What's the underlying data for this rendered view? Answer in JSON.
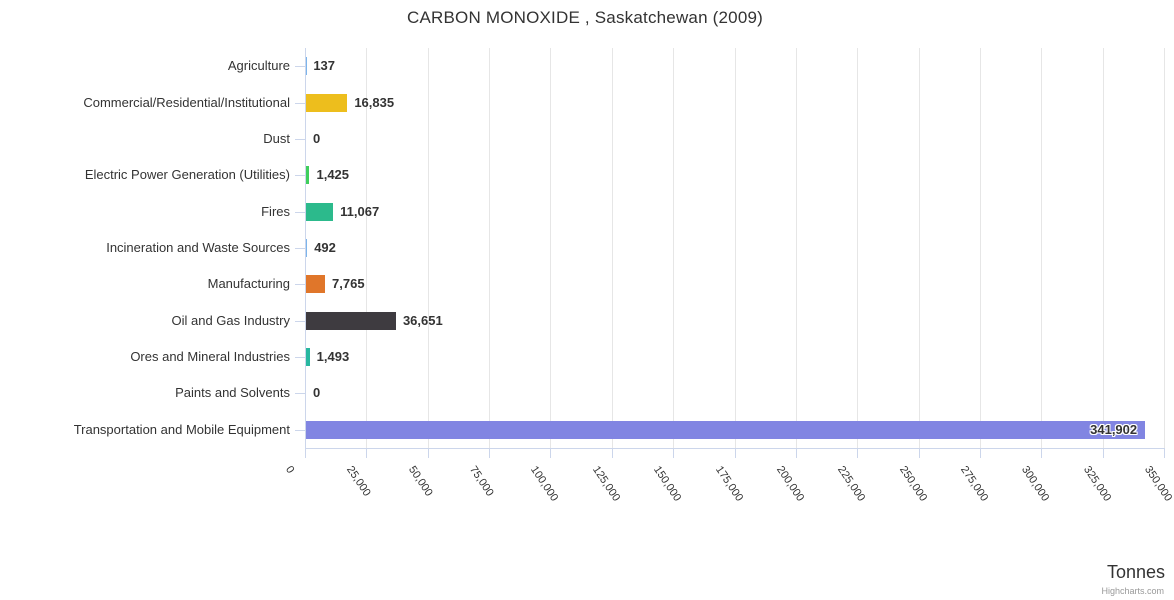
{
  "title": "CARBON MONOXIDE , Saskatchewan (2009)",
  "axis_title": "Tonnes",
  "credits": "Highcharts.com",
  "chart_data": {
    "type": "bar",
    "orientation": "horizontal",
    "title": "CARBON MONOXIDE , Saskatchewan (2009)",
    "xlabel": "Tonnes",
    "ylabel": "",
    "xlim": [
      0,
      350000
    ],
    "x_tick_interval": 25000,
    "x_tick_labels": [
      "0",
      "25,000",
      "50,000",
      "75,000",
      "100,000",
      "125,000",
      "150,000",
      "175,000",
      "200,000",
      "225,000",
      "250,000",
      "275,000",
      "300,000",
      "325,000",
      "350,000"
    ],
    "grid": true,
    "legend": false,
    "categories": [
      "Agriculture",
      "Commercial/Residential/Institutional",
      "Dust",
      "Electric Power Generation (Utilities)",
      "Fires",
      "Incineration and Waste Sources",
      "Manufacturing",
      "Oil and Gas Industry",
      "Ores and Mineral Industries",
      "Paints and Solvents",
      "Transportation and Mobile Equipment"
    ],
    "values": [
      137,
      16835,
      0,
      1425,
      11067,
      492,
      7765,
      36651,
      1493,
      0,
      341902
    ],
    "value_labels": [
      "137",
      "16,835",
      "0",
      "1,425",
      "11,067",
      "492",
      "7,765",
      "36,651",
      "1,493",
      "0",
      "341,902"
    ],
    "bar_colors": [
      "#7cb5ec",
      "#edbe1d",
      "#7cb5ec",
      "#3fce5c",
      "#2cba8c",
      "#7cb5ec",
      "#e0762a",
      "#3e3b40",
      "#28b7a0",
      "#7cb5ec",
      "#8185e2"
    ],
    "colors": {
      "grid": "#e6e6e6",
      "axis": "#ccd6eb",
      "category_text": "#333333",
      "value_text": "#333333",
      "tick_text": "#333333",
      "title_text": "#333333",
      "credits_text": "#999999",
      "background": "#ffffff"
    }
  }
}
